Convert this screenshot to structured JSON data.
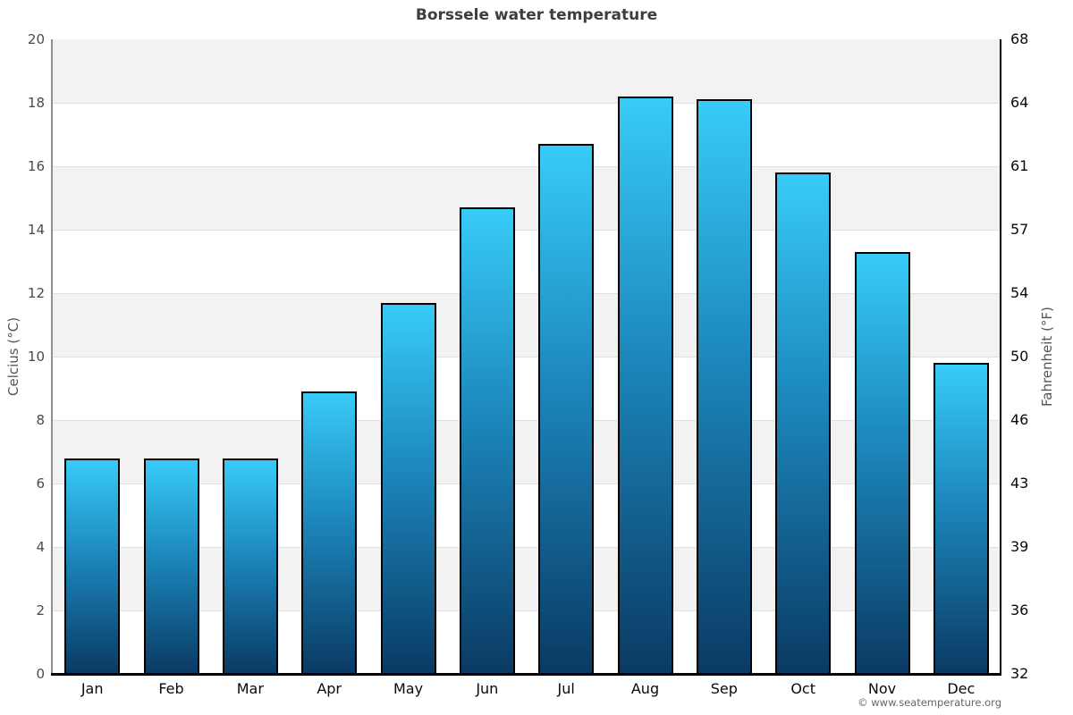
{
  "chart_data": {
    "type": "bar",
    "title": "Borssele water temperature",
    "categories": [
      "Jan",
      "Feb",
      "Mar",
      "Apr",
      "May",
      "Jun",
      "Jul",
      "Aug",
      "Sep",
      "Oct",
      "Nov",
      "Dec"
    ],
    "values": [
      6.8,
      6.8,
      6.8,
      8.9,
      11.7,
      14.7,
      16.7,
      18.2,
      18.1,
      15.8,
      13.3,
      9.8
    ],
    "ylabel_left": "Celcius (°C)",
    "ylabel_right": "Fahrenheit (°F)",
    "xlabel": "",
    "ylim": [
      0,
      20
    ],
    "yticks_celsius": [
      "0",
      "2",
      "4",
      "6",
      "8",
      "10",
      "12",
      "14",
      "16",
      "18",
      "20"
    ],
    "yticks_fahrenheit": [
      "32",
      "36",
      "39",
      "43",
      "46",
      "50",
      "54",
      "57",
      "61",
      "64",
      "68"
    ],
    "grid": "horizontal, alternating shaded bands every 2°C",
    "legend": "none",
    "colors": {
      "bar_gradient_top": "#38cbf9",
      "bar_gradient_mid": "#1c87bc",
      "bar_gradient_bottom": "#0a3a63",
      "bar_border": "#000000",
      "band_shade": "#f2f2f2",
      "band_light": "#ffffff",
      "gridline": "#e0e0e0",
      "axis_left": "#909090",
      "axis_right": "#000000",
      "axis_bottom": "#000000",
      "title_color": "#3d3d3d"
    }
  },
  "footer": {
    "copyright": "© www.seatemperature.org"
  }
}
